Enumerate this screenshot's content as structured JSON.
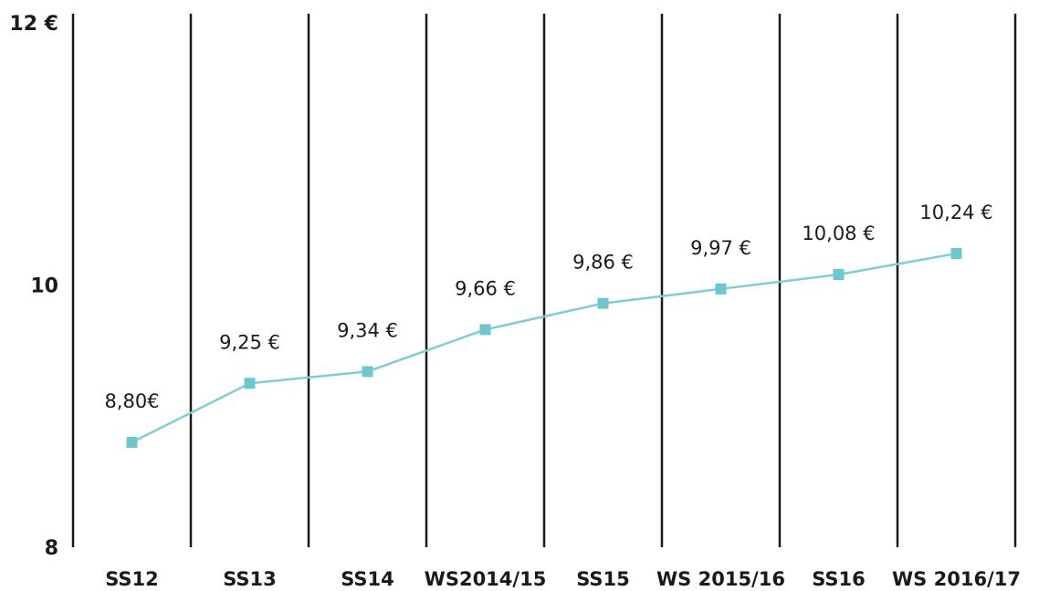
{
  "chart_data": {
    "type": "line",
    "categories": [
      "SS12",
      "SS13",
      "SS14",
      "WS2014/15",
      "SS15",
      "WS 2015/16",
      "SS16",
      "WS 2016/17"
    ],
    "values": [
      8.8,
      9.25,
      9.34,
      9.66,
      9.86,
      9.97,
      10.08,
      10.24
    ],
    "value_labels": [
      "8,80€",
      "9,25 €",
      "9,34 €",
      "9,66 €",
      "9,86 €",
      "9,97 €",
      "10,08 €",
      "10,24 €"
    ],
    "color": "#7ccfd3",
    "ylim": [
      8,
      12
    ],
    "yticks": [
      8,
      10,
      {
        "value": 12,
        "label": "12 €"
      }
    ]
  }
}
